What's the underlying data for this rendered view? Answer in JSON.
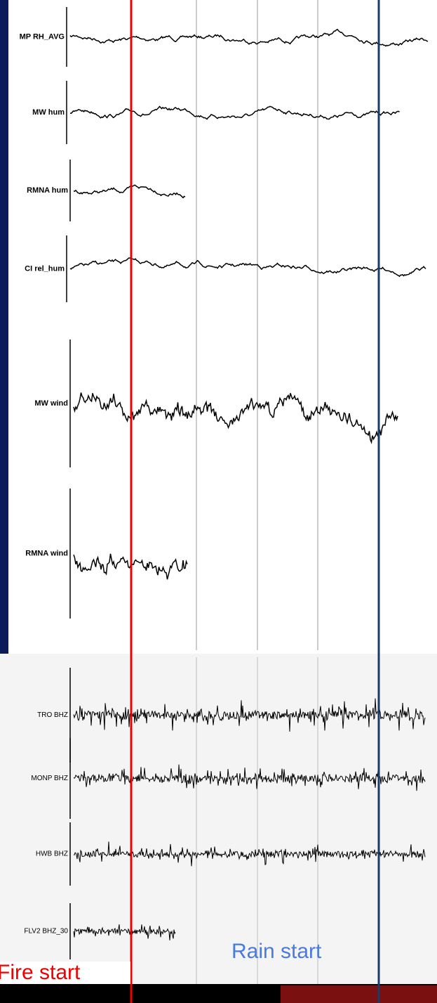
{
  "panels": [
    {
      "label": "MP RH_AVG"
    },
    {
      "label": "MW hum"
    },
    {
      "label": "RMNA hum"
    },
    {
      "label": "CI rel_hum"
    },
    {
      "label": "MW wind"
    },
    {
      "label": "RMNA wind"
    },
    {
      "label": "TRO BHZ"
    },
    {
      "label": "MONP BHZ"
    },
    {
      "label": "HWB BHZ"
    },
    {
      "label": "FLV2 BHZ_30"
    }
  ],
  "annotations": {
    "fire": "Fire start",
    "rain": "Rain start"
  }
}
